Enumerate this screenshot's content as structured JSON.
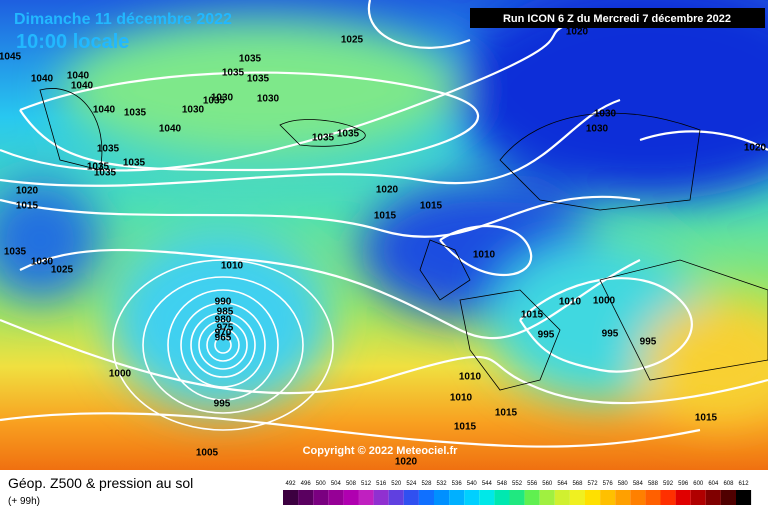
{
  "header": {
    "date": "Dimanche 11 décembre 2022",
    "time": "10:00 locale",
    "run": "Run ICON 6 Z du Mercredi 7 décembre 2022"
  },
  "copyright": "Copyright © 2022 Meteociel.fr",
  "footer": {
    "title": "Géop. Z500 & pression au sol",
    "subtitle": "(+ 99h)"
  },
  "colorbar": {
    "labels": [
      "492",
      "496",
      "500",
      "504",
      "508",
      "512",
      "516",
      "520",
      "524",
      "528",
      "532",
      "536",
      "540",
      "544",
      "548",
      "552",
      "556",
      "560",
      "564",
      "568",
      "572",
      "576",
      "580",
      "584",
      "588",
      "592",
      "596",
      "600",
      "604",
      "608",
      "612"
    ]
  },
  "isobar_labels": [
    "1045",
    "1040",
    "1040",
    "1040",
    "1040",
    "1035",
    "1040",
    "1030",
    "1035",
    "1035",
    "1035",
    "1035",
    "1030",
    "1030",
    "1035",
    "1035",
    "1035",
    "1035",
    "1035",
    "1035",
    "1025",
    "1020",
    "1030",
    "1030",
    "1020",
    "1020",
    "1015",
    "1015",
    "1020",
    "1015",
    "1035",
    "1030",
    "1025",
    "1010",
    "1010",
    "1010",
    "1000",
    "1015",
    "995",
    "995",
    "995",
    "1000",
    "995",
    "1010",
    "1010",
    "1015",
    "1015",
    "1015",
    "1005",
    "1020",
    "990",
    "985",
    "980",
    "975",
    "970",
    "965"
  ]
}
